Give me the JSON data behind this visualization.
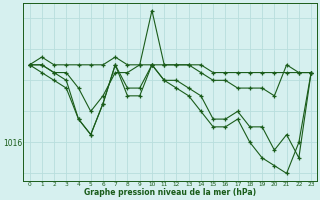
{
  "title": "Graphe pression niveau de la mer (hPa)",
  "bg_color": "#d6f0ef",
  "grid_color": "#b8dedd",
  "line_color": "#1a5c1a",
  "xlim": [
    -0.5,
    23.5
  ],
  "ylim": [
    1011,
    1034
  ],
  "xticks": [
    0,
    1,
    2,
    3,
    4,
    5,
    6,
    7,
    8,
    9,
    10,
    11,
    12,
    13,
    14,
    15,
    16,
    17,
    18,
    19,
    20,
    21,
    22,
    23
  ],
  "ytick_positions": [
    1016
  ],
  "series": [
    [
      1026,
      1027,
      1026,
      1026,
      1026,
      1026,
      1026,
      1027,
      1026,
      1026,
      1026,
      1026,
      1026,
      1026,
      1026,
      1025,
      1025,
      1025,
      1025,
      1025,
      1025,
      1025,
      1025,
      1025
    ],
    [
      1026,
      1026,
      1025,
      1025,
      1023,
      1020,
      1022,
      1025,
      1025,
      1026,
      1033,
      1026,
      1026,
      1026,
      1025,
      1024,
      1024,
      1023,
      1023,
      1023,
      1022,
      1026,
      1025,
      1025
    ],
    [
      1026,
      1026,
      1025,
      1024,
      1019,
      1017,
      1021,
      1026,
      1023,
      1023,
      1026,
      1024,
      1024,
      1023,
      1022,
      1019,
      1019,
      1020,
      1018,
      1018,
      1015,
      1017,
      1014,
      1025
    ],
    [
      1026,
      1025,
      1024,
      1023,
      1019,
      1017,
      1021,
      1026,
      1022,
      1022,
      1026,
      1024,
      1023,
      1022,
      1020,
      1018,
      1018,
      1019,
      1016,
      1014,
      1013,
      1012,
      1016,
      1025
    ]
  ]
}
